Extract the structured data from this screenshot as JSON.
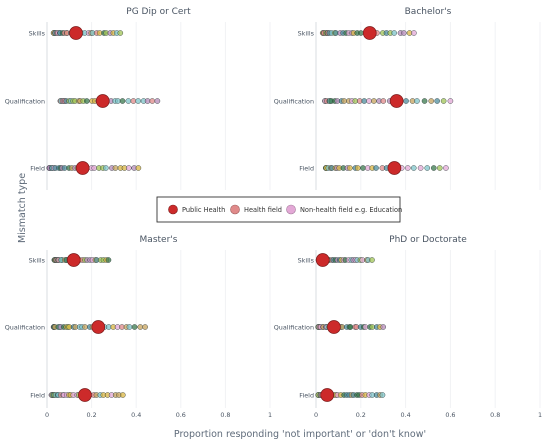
{
  "y_axis_label": "Mismatch type",
  "x_axis_label": "Proportion responding 'not important' or 'don't know'",
  "legend": [
    {
      "name": "Public Health",
      "color": "#cc2a2a"
    },
    {
      "name": "Health field",
      "color": "#e08a8a"
    },
    {
      "name": "Non-health field e.g. Education",
      "color": "#e3a8d6"
    }
  ],
  "x_ticks": [
    "0",
    "0.2",
    "0.4",
    "0.6",
    "0.8",
    "1"
  ],
  "chart_data": {
    "type": "scatter",
    "xlim": [
      0,
      1
    ],
    "categories": [
      "Skills",
      "Qualification",
      "Field"
    ],
    "xlabel": "Proportion responding 'not important' or 'don't know'",
    "ylabel": "Mismatch type",
    "panels": [
      {
        "title": "PG Dip or Cert",
        "series": [
          {
            "name": "Public Health",
            "category": "Skills",
            "x": 0.13
          },
          {
            "name": "Public Health",
            "category": "Qualification",
            "x": 0.25
          },
          {
            "name": "Public Health",
            "category": "Field",
            "x": 0.16
          }
        ],
        "point_ranges": [
          {
            "category": "Skills",
            "min": 0.03,
            "max": 0.33
          },
          {
            "category": "Qualification",
            "min": 0.06,
            "max": 0.5
          },
          {
            "category": "Field",
            "min": 0.01,
            "max": 0.41
          }
        ]
      },
      {
        "title": "Bachelor's",
        "series": [
          {
            "name": "Public Health",
            "category": "Skills",
            "x": 0.24
          },
          {
            "name": "Public Health",
            "category": "Qualification",
            "x": 0.36
          },
          {
            "name": "Public Health",
            "category": "Field",
            "x": 0.35
          }
        ],
        "point_ranges": [
          {
            "category": "Skills",
            "min": 0.03,
            "max": 0.44
          },
          {
            "category": "Qualification",
            "min": 0.04,
            "max": 0.6
          },
          {
            "category": "Field",
            "min": 0.04,
            "max": 0.58
          }
        ]
      },
      {
        "title": "Master's",
        "series": [
          {
            "name": "Public Health",
            "category": "Skills",
            "x": 0.12
          },
          {
            "name": "Public Health",
            "category": "Qualification",
            "x": 0.23
          },
          {
            "name": "Public Health",
            "category": "Field",
            "x": 0.17
          }
        ],
        "point_ranges": [
          {
            "category": "Skills",
            "min": 0.03,
            "max": 0.28
          },
          {
            "category": "Qualification",
            "min": 0.03,
            "max": 0.44
          },
          {
            "category": "Field",
            "min": 0.02,
            "max": 0.34
          }
        ]
      },
      {
        "title": "PhD or Doctorate",
        "series": [
          {
            "name": "Public Health",
            "category": "Skills",
            "x": 0.03
          },
          {
            "name": "Public Health",
            "category": "Qualification",
            "x": 0.08
          },
          {
            "name": "Public Health",
            "category": "Field",
            "x": 0.05
          }
        ],
        "point_ranges": [
          {
            "category": "Skills",
            "min": 0.01,
            "max": 0.25
          },
          {
            "category": "Qualification",
            "min": 0.01,
            "max": 0.3
          },
          {
            "category": "Field",
            "min": 0.01,
            "max": 0.3
          }
        ]
      }
    ]
  }
}
